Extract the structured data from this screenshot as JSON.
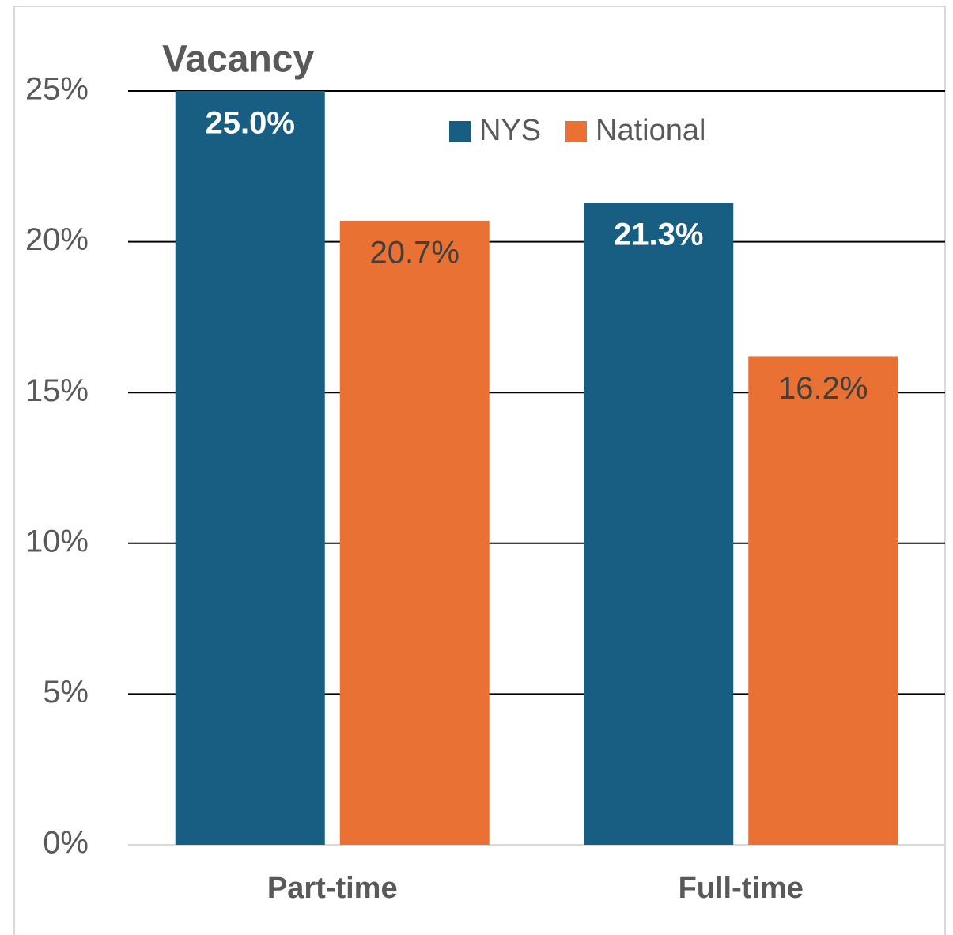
{
  "chart_data": {
    "type": "bar",
    "title": "Vacancy",
    "categories": [
      "Part-time",
      "Full-time"
    ],
    "series": [
      {
        "name": "NYS",
        "color": "#175e82",
        "values": [
          25.0,
          21.3
        ],
        "value_labels": [
          "25.0%",
          "21.3%"
        ]
      },
      {
        "name": "National",
        "color": "#e87133",
        "values": [
          20.7,
          16.2
        ],
        "value_labels": [
          "20.7%",
          "16.2%"
        ]
      }
    ],
    "ylim": [
      0,
      25
    ],
    "yticks": [
      {
        "value": 0,
        "label": "0%"
      },
      {
        "value": 5,
        "label": "5%"
      },
      {
        "value": 10,
        "label": "10%"
      },
      {
        "value": 15,
        "label": "15%"
      },
      {
        "value": 20,
        "label": "20%"
      },
      {
        "value": 25,
        "label": "25%"
      }
    ],
    "grid": true,
    "legend": "top"
  }
}
